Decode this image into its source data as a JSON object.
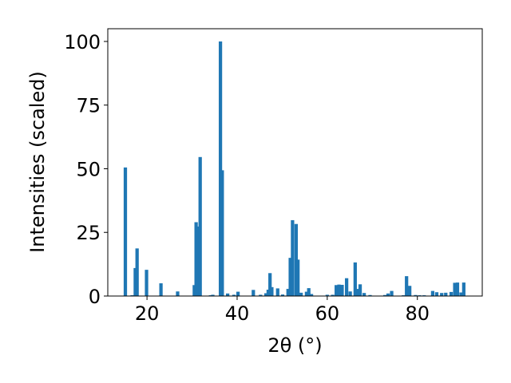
{
  "chart_data": {
    "type": "bar",
    "title": "",
    "xlabel": "2θ (°)",
    "ylabel": "Intensities (scaled)",
    "xlim": [
      11.3,
      94.4
    ],
    "ylim": [
      0,
      105
    ],
    "xticks": [
      20,
      40,
      60,
      80
    ],
    "yticks": [
      0,
      25,
      50,
      75,
      100
    ],
    "grid": false,
    "bar_color": "#1f77b4",
    "bar_width": 0.75,
    "series": [
      {
        "x": [
          15.2,
          16.7,
          17.4,
          17.8,
          19.9,
          23.1,
          26.8,
          30.5,
          30.9,
          31.3,
          31.8,
          34.1,
          34.6,
          36.3,
          36.7,
          37.9,
          39.3,
          40.2,
          43.6,
          45.2,
          46.4,
          46.9,
          47.3,
          47.7,
          49.0,
          50.1,
          51.3,
          51.8,
          52.3,
          53.1,
          53.5,
          54.2,
          55.4,
          55.9,
          56.5,
          60.0,
          61.2,
          62.0,
          62.6,
          63.3,
          64.3,
          65.1,
          66.2,
          66.7,
          67.3,
          68.2,
          69.5,
          72.8,
          73.5,
          74.3,
          76.9,
          77.6,
          78.3,
          79.6,
          80.5,
          81.5,
          83.4,
          84.3,
          85.4,
          86.3,
          87.5,
          88.3,
          88.9,
          89.7,
          90.3
        ],
        "values": [
          50.5,
          0.3,
          11,
          18.7,
          10.3,
          5,
          1.8,
          4.3,
          29,
          27.3,
          54.6,
          0.3,
          0.5,
          100,
          49.4,
          1,
          0.5,
          1.7,
          2.4,
          0.5,
          1.1,
          2.5,
          9,
          3.5,
          3,
          0.6,
          2.8,
          15,
          29.8,
          28.3,
          14.3,
          1.3,
          1.7,
          3.1,
          0.8,
          0.5,
          0.5,
          4.3,
          4.5,
          4.4,
          7,
          1.8,
          13.2,
          2.8,
          4.6,
          1.2,
          0.4,
          0.4,
          1,
          2,
          0.3,
          7.8,
          4,
          0.4,
          0.3,
          0.3,
          2,
          1.5,
          1.2,
          1.3,
          1.6,
          5.2,
          5.3,
          1.4,
          5.3
        ]
      }
    ]
  }
}
